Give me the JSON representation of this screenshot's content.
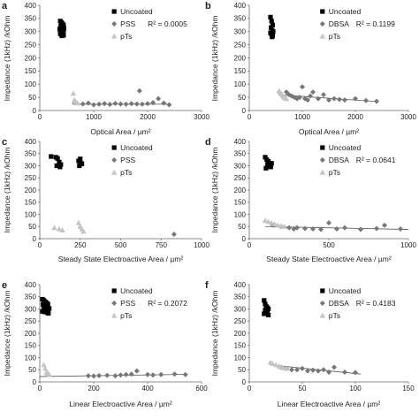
{
  "colors": {
    "uncoated": "#000000",
    "coated": "#777777",
    "pts": "#c4c4c4",
    "axis": "#666666",
    "trend": "#555555"
  },
  "chart_data": [
    {
      "panel": "a",
      "type": "scatter",
      "xlabel": "Optical Area / µm²",
      "ylabel": "Impedance (1kHz) /kOhm",
      "xlim": [
        0,
        3000
      ],
      "ylim": [
        0,
        400
      ],
      "xticks": [
        0,
        1000,
        2000,
        3000
      ],
      "yticks": [
        0,
        50,
        100,
        150,
        200,
        250,
        300,
        350,
        400
      ],
      "legend": [
        {
          "label": "Uncoated",
          "marker": "square",
          "series": "uncoated"
        },
        {
          "label": "PSS",
          "marker": "diamond",
          "series": "coated",
          "r2": "R² = 0.0005"
        },
        {
          "label": "pTs",
          "marker": "triangle",
          "series": "pts"
        }
      ],
      "series": [
        {
          "name": "Uncoated",
          "x": [
            380,
            400,
            420,
            440,
            390,
            410,
            430,
            450,
            370,
            400,
            420,
            440,
            390,
            410,
            430,
            380,
            400,
            420,
            440,
            410
          ],
          "y": [
            340,
            335,
            330,
            325,
            320,
            318,
            315,
            312,
            310,
            308,
            305,
            302,
            300,
            298,
            295,
            292,
            290,
            288,
            286,
            284
          ]
        },
        {
          "name": "PSS",
          "x": [
            650,
            800,
            900,
            1000,
            1100,
            1200,
            1300,
            1400,
            1500,
            1600,
            1700,
            1800,
            1850,
            1900,
            2000,
            2100,
            2200,
            2300,
            2400
          ],
          "y": [
            30,
            25,
            28,
            22,
            24,
            26,
            23,
            27,
            25,
            24,
            26,
            25,
            75,
            24,
            26,
            30,
            45,
            28,
            22
          ]
        },
        {
          "name": "pTs",
          "x": [
            620,
            640,
            660,
            680,
            700
          ],
          "y": [
            65,
            40,
            35,
            30,
            28
          ]
        }
      ],
      "trendline": {
        "x": [
          600,
          2400
        ],
        "y": [
          24,
          24
        ]
      }
    },
    {
      "panel": "b",
      "type": "scatter",
      "xlabel": "Optical Area / µm²",
      "ylabel": "Impedance (1kHz) /kOhm",
      "xlim": [
        0,
        3000
      ],
      "ylim": [
        0,
        400
      ],
      "xticks": [
        0,
        1000,
        2000,
        3000
      ],
      "yticks": [
        0,
        50,
        100,
        150,
        200,
        250,
        300,
        350,
        400
      ],
      "legend": [
        {
          "label": "Uncoated",
          "marker": "square",
          "series": "uncoated"
        },
        {
          "label": "DBSA",
          "marker": "diamond",
          "series": "coated",
          "r2": "R² = 0.1199"
        },
        {
          "label": "pTs",
          "marker": "triangle",
          "series": "pts"
        }
      ],
      "series": [
        {
          "name": "Uncoated",
          "x": [
            400,
            420,
            440,
            410,
            430,
            450,
            400,
            420,
            440,
            430
          ],
          "y": [
            355,
            340,
            325,
            315,
            305,
            300,
            295,
            290,
            285,
            280
          ]
        },
        {
          "name": "DBSA",
          "x": [
            700,
            750,
            800,
            850,
            900,
            950,
            1000,
            1050,
            1100,
            1150,
            1200,
            1300,
            1400,
            1500,
            1600,
            1700,
            1800,
            2000,
            2200,
            2400
          ],
          "y": [
            70,
            60,
            55,
            50,
            45,
            50,
            90,
            45,
            40,
            55,
            70,
            45,
            60,
            40,
            45,
            42,
            40,
            45,
            38,
            35
          ]
        },
        {
          "name": "pTs",
          "x": [
            560,
            580,
            600,
            620,
            640,
            660,
            680,
            700
          ],
          "y": [
            75,
            70,
            65,
            60,
            55,
            50,
            48,
            45
          ]
        }
      ],
      "trendline": {
        "x": [
          550,
          2400
        ],
        "y": [
          60,
          34
        ]
      }
    },
    {
      "panel": "c",
      "type": "scatter",
      "xlabel": "Steady State Electroactive Area / µm²",
      "ylabel": "Impedance (1kHz) /kOhm",
      "xlim": [
        0,
        1000
      ],
      "ylim": [
        0,
        400
      ],
      "xticks": [
        0,
        250,
        500,
        750,
        1000
      ],
      "yticks": [
        0,
        50,
        100,
        150,
        200,
        250,
        300,
        350,
        400
      ],
      "legend": [
        {
          "label": "Uncoated",
          "marker": "square",
          "series": "uncoated"
        },
        {
          "label": "PSS",
          "marker": "diamond",
          "series": "coated"
        },
        {
          "label": "pTs",
          "marker": "triangle",
          "series": "pts"
        }
      ],
      "series": [
        {
          "name": "Uncoated",
          "x": [
            70,
            100,
            110,
            120,
            130,
            105,
            125,
            240,
            250,
            260,
            245,
            255
          ],
          "y": [
            338,
            335,
            330,
            315,
            305,
            300,
            295,
            320,
            328,
            308,
            300,
            310
          ]
        },
        {
          "name": "PSS",
          "x": [
            830
          ],
          "y": [
            18
          ]
        },
        {
          "name": "pTs",
          "x": [
            90,
            120,
            140,
            240,
            250,
            260,
            270
          ],
          "y": [
            45,
            40,
            35,
            65,
            50,
            40,
            30
          ]
        }
      ]
    },
    {
      "panel": "d",
      "type": "scatter",
      "xlabel": "Steady State Electroactive Area / µm²",
      "ylabel": "Impedance (1kHz) /kOhm",
      "xlim": [
        0,
        1000
      ],
      "ylim": [
        0,
        400
      ],
      "xticks": [
        0,
        500,
        1000
      ],
      "yticks": [
        0,
        50,
        100,
        150,
        200,
        250,
        300,
        350,
        400
      ],
      "legend": [
        {
          "label": "Uncoated",
          "marker": "square",
          "series": "uncoated"
        },
        {
          "label": "DBSA",
          "marker": "diamond",
          "series": "coated",
          "r2": "R² = 0.0641"
        },
        {
          "label": "pTs",
          "marker": "triangle",
          "series": "pts"
        }
      ],
      "series": [
        {
          "name": "Uncoated",
          "x": [
            100,
            110,
            120,
            130,
            115,
            125,
            135,
            105,
            140
          ],
          "y": [
            335,
            325,
            318,
            310,
            305,
            300,
            295,
            290,
            310
          ]
        },
        {
          "name": "DBSA",
          "x": [
            150,
            200,
            250,
            280,
            300,
            350,
            400,
            450,
            500,
            550,
            600,
            700,
            800,
            850,
            950
          ],
          "y": [
            55,
            50,
            45,
            40,
            45,
            42,
            40,
            38,
            65,
            40,
            45,
            38,
            42,
            55,
            40
          ]
        },
        {
          "name": "pTs",
          "x": [
            100,
            120,
            140,
            160,
            180,
            200,
            220
          ],
          "y": [
            75,
            70,
            65,
            60,
            55,
            52,
            50
          ]
        }
      ],
      "trendline": {
        "x": [
          100,
          1000
        ],
        "y": [
          50,
          38
        ]
      }
    },
    {
      "panel": "e",
      "type": "scatter",
      "xlabel": "Linear Electroactive Area / µm²",
      "ylabel": "Impedance (1kHz) /kOhm",
      "xlim": [
        0,
        600
      ],
      "ylim": [
        0,
        400
      ],
      "xticks": [
        0,
        200,
        400,
        600
      ],
      "yticks": [
        0,
        50,
        100,
        150,
        200,
        250,
        300,
        350,
        400
      ],
      "legend": [
        {
          "label": "Uncoated",
          "marker": "square",
          "series": "uncoated"
        },
        {
          "label": "PSS",
          "marker": "diamond",
          "series": "coated",
          "r2": "R² = 0.2072"
        },
        {
          "label": "pTs",
          "marker": "triangle",
          "series": "pts"
        }
      ],
      "series": [
        {
          "name": "Uncoated",
          "x": [
            10,
            15,
            20,
            25,
            30,
            12,
            18,
            22,
            28,
            35,
            15,
            25,
            30,
            20,
            10,
            18,
            28,
            32
          ],
          "y": [
            340,
            335,
            330,
            325,
            320,
            318,
            315,
            310,
            305,
            302,
            300,
            298,
            295,
            292,
            290,
            288,
            285,
            282
          ]
        },
        {
          "name": "PSS",
          "x": [
            180,
            200,
            220,
            250,
            280,
            300,
            320,
            340,
            360,
            400,
            420,
            450,
            500,
            540
          ],
          "y": [
            25,
            24,
            26,
            27,
            25,
            28,
            30,
            32,
            45,
            30,
            28,
            30,
            32,
            30
          ]
        },
        {
          "name": "pTs",
          "x": [
            15,
            20,
            25,
            30,
            35
          ],
          "y": [
            70,
            55,
            40,
            35,
            30
          ]
        }
      ],
      "trendline": {
        "x": [
          0,
          550
        ],
        "y": [
          22,
          31
        ]
      }
    },
    {
      "panel": "f",
      "type": "scatter",
      "xlabel": "Linear Electroactive Area / µm²",
      "ylabel": "Impedance (1kHz) /kOhm",
      "xlim": [
        0,
        150
      ],
      "ylim": [
        0,
        400
      ],
      "xticks": [
        0,
        50,
        100,
        150
      ],
      "yticks": [
        0,
        50,
        100,
        150,
        200,
        250,
        300,
        350,
        400
      ],
      "legend": [
        {
          "label": "Uncoated",
          "marker": "square",
          "series": "uncoated"
        },
        {
          "label": "DBSA",
          "marker": "diamond",
          "series": "coated",
          "r2": "R² = 0.4183"
        },
        {
          "label": "pTs",
          "marker": "triangle",
          "series": "pts"
        }
      ],
      "series": [
        {
          "name": "Uncoated",
          "x": [
            14,
            15,
            16,
            17,
            18,
            15,
            16,
            17,
            14,
            18,
            16
          ],
          "y": [
            335,
            320,
            310,
            305,
            300,
            295,
            290,
            285,
            280,
            275,
            298
          ]
        },
        {
          "name": "DBSA",
          "x": [
            30,
            35,
            40,
            45,
            50,
            55,
            60,
            65,
            70,
            75,
            80,
            90,
            100
          ],
          "y": [
            60,
            55,
            50,
            50,
            55,
            45,
            48,
            45,
            50,
            40,
            60,
            40,
            38
          ]
        },
        {
          "name": "pTs",
          "x": [
            20,
            22,
            25,
            28,
            30,
            32,
            35
          ],
          "y": [
            80,
            75,
            70,
            65,
            60,
            58,
            55
          ]
        }
      ],
      "trendline": {
        "x": [
          20,
          105
        ],
        "y": [
          70,
          32
        ]
      }
    }
  ]
}
